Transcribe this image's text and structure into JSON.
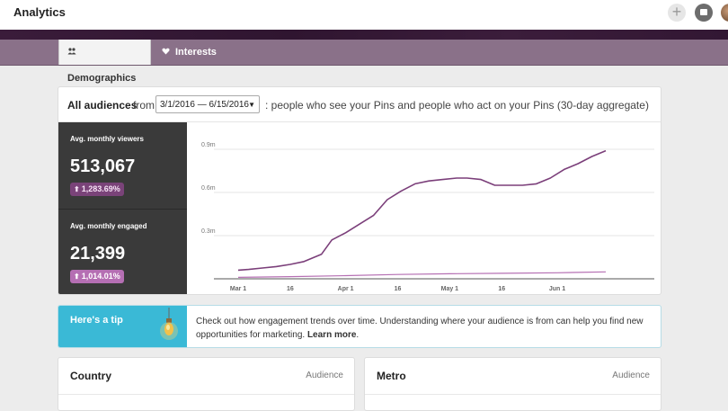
{
  "app": {
    "title": "Analytics"
  },
  "tabs": [
    {
      "label": "Demographics",
      "icon": "people-icon",
      "active": true
    },
    {
      "label": "Interests",
      "icon": "heart-icon",
      "active": false
    }
  ],
  "header": {
    "audience_label": "All audiences",
    "from_text": "from",
    "date_range": "3/1/2016 — 6/15/2016",
    "description": ": people who see your Pins and people who act on your Pins (30-day aggregate)"
  },
  "stats": [
    {
      "label": "Avg. monthly viewers",
      "value": "513,067",
      "change": "1,283.69%"
    },
    {
      "label": "Avg. monthly engaged",
      "value": "21,399",
      "change": "1,014.01%"
    }
  ],
  "chart_data": {
    "type": "line",
    "x_ticks": [
      "Mar 1",
      "16",
      "Apr 1",
      "16",
      "May 1",
      "16",
      "Jun 1"
    ],
    "y_ticks": [
      "0.3m",
      "0.6m",
      "0.9m"
    ],
    "ylim": [
      0,
      1000000
    ],
    "xlim": [
      "2016-02-23",
      "2016-06-29"
    ],
    "grid": true,
    "series": [
      {
        "color": "#7b3f7a",
        "x": [
          "2016-03-01",
          "2016-03-04",
          "2016-03-08",
          "2016-03-12",
          "2016-03-16",
          "2016-03-20",
          "2016-03-25",
          "2016-03-28",
          "2016-04-01",
          "2016-04-05",
          "2016-04-09",
          "2016-04-13",
          "2016-04-17",
          "2016-04-21",
          "2016-04-25",
          "2016-04-29",
          "2016-05-03",
          "2016-05-06",
          "2016-05-10",
          "2016-05-14",
          "2016-05-18",
          "2016-05-22",
          "2016-05-26",
          "2016-05-30",
          "2016-06-03",
          "2016-06-07",
          "2016-06-11",
          "2016-06-15"
        ],
        "values": [
          60000,
          65000,
          75000,
          85000,
          100000,
          120000,
          170000,
          270000,
          320000,
          380000,
          440000,
          550000,
          610000,
          660000,
          680000,
          690000,
          700000,
          700000,
          690000,
          650000,
          650000,
          650000,
          660000,
          700000,
          760000,
          800000,
          850000,
          890000
        ]
      },
      {
        "color": "#b56fb3",
        "x": [
          "2016-03-01",
          "2016-03-16",
          "2016-04-01",
          "2016-04-16",
          "2016-05-01",
          "2016-05-16",
          "2016-06-01",
          "2016-06-15"
        ],
        "values": [
          10000,
          15000,
          22000,
          30000,
          35000,
          38000,
          42000,
          48000
        ]
      }
    ]
  },
  "tip": {
    "title": "Here's a tip",
    "text": "Check out how engagement trends over time. Understanding where your audience is from can help you find new opportunities for marketing.",
    "link": "Learn more"
  },
  "panels": [
    {
      "title": "Country",
      "meta": "Audience"
    },
    {
      "title": "Metro",
      "meta": "Audience"
    }
  ]
}
